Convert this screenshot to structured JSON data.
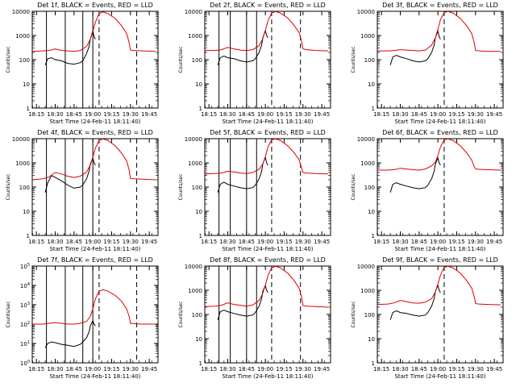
{
  "figure": {
    "xlabel": "Start Time (24-Feb-11 18:11:40)",
    "ylabel": "Counts/sec",
    "x_tick_labels": [
      "18:15",
      "18:30",
      "18:45",
      "19:00",
      "19:15",
      "19:30",
      "19:45"
    ],
    "x_tick_minutes": [
      15,
      30,
      45,
      60,
      75,
      90,
      105
    ],
    "xlim_minutes": [
      11.67,
      112
    ],
    "colors": {
      "events": "#000000",
      "lld": "#dd0000",
      "axes": "#000000"
    }
  },
  "chart_data": [
    {
      "type": "line",
      "title": "Det 1f, BLACK = Events, RED = LLD",
      "ylabel": "Counts/sec",
      "ylim": [
        1,
        10000
      ],
      "yscale": "log",
      "ytick_style": "plain",
      "solid_lines_minutes": [
        23,
        38,
        52,
        60
      ],
      "dashed_lines_minutes": [
        65,
        95
      ],
      "series": [
        {
          "name": "Events",
          "color": "#000000",
          "x": [
            22,
            24,
            27,
            30,
            35,
            40,
            45,
            50,
            52,
            55,
            57,
            58,
            60,
            61,
            62
          ],
          "y": [
            60,
            110,
            120,
            100,
            90,
            70,
            65,
            75,
            90,
            180,
            350,
            700,
            1600,
            900,
            700
          ]
        },
        {
          "name": "LLD",
          "color": "#dd0000",
          "x": [
            11.7,
            20,
            25,
            30,
            35,
            40,
            45,
            50,
            55,
            58,
            60,
            62,
            65,
            68,
            72,
            78,
            83,
            87,
            89,
            90,
            93,
            100,
            110
          ],
          "y": [
            220,
            230,
            240,
            280,
            240,
            230,
            220,
            240,
            350,
            700,
            1500,
            3500,
            8000,
            9500,
            8000,
            5000,
            2500,
            1200,
            500,
            250,
            240,
            230,
            220
          ]
        }
      ]
    },
    {
      "type": "line",
      "title": "Det 2f, BLACK = Events, RED = LLD",
      "ylabel": "Counts/sec",
      "ylim": [
        1,
        10000
      ],
      "yscale": "log",
      "ytick_style": "plain",
      "solid_lines_minutes": [
        23,
        32,
        45,
        53
      ],
      "dashed_lines_minutes": [
        65,
        88
      ],
      "series": [
        {
          "name": "Events",
          "color": "#000000",
          "x": [
            22,
            24,
            27,
            30,
            35,
            40,
            45,
            50,
            52,
            55,
            57,
            58,
            60,
            61,
            62
          ],
          "y": [
            60,
            120,
            140,
            120,
            110,
            90,
            80,
            90,
            110,
            200,
            400,
            800,
            1600,
            1000,
            800
          ]
        },
        {
          "name": "LLD",
          "color": "#dd0000",
          "x": [
            11.7,
            20,
            25,
            30,
            35,
            40,
            45,
            50,
            55,
            58,
            60,
            62,
            65,
            68,
            72,
            78,
            83,
            87,
            89,
            90,
            93,
            100,
            110
          ],
          "y": [
            240,
            240,
            260,
            320,
            280,
            250,
            240,
            260,
            380,
            750,
            1600,
            4000,
            8500,
            9800,
            8500,
            5200,
            2600,
            1300,
            550,
            280,
            260,
            240,
            230
          ]
        }
      ]
    },
    {
      "type": "line",
      "title": "Det 3f, BLACK = Events, RED = LLD",
      "ylabel": "Counts/sec",
      "ylim": [
        1,
        10000
      ],
      "yscale": "log",
      "ytick_style": "plain",
      "solid_lines_minutes": [],
      "dashed_lines_minutes": [
        65
      ],
      "series": [
        {
          "name": "Events",
          "color": "#000000",
          "x": [
            22,
            24,
            27,
            30,
            35,
            40,
            45,
            50,
            52,
            55,
            57,
            58,
            60,
            61,
            62
          ],
          "y": [
            60,
            130,
            150,
            130,
            110,
            90,
            80,
            90,
            110,
            200,
            400,
            800,
            1500,
            900,
            700
          ]
        },
        {
          "name": "LLD",
          "color": "#dd0000",
          "x": [
            11.7,
            20,
            25,
            30,
            35,
            40,
            45,
            50,
            55,
            58,
            60,
            62,
            65,
            68,
            72,
            78,
            83,
            87,
            89,
            90,
            93,
            100,
            110
          ],
          "y": [
            230,
            230,
            240,
            260,
            250,
            240,
            230,
            250,
            400,
            800,
            1800,
            4500,
            9000,
            9800,
            8500,
            5000,
            2500,
            1200,
            500,
            240,
            230,
            220,
            220
          ]
        }
      ]
    },
    {
      "type": "line",
      "title": "Det 4f, BLACK = Events, RED = LLD",
      "ylabel": "Counts/sec",
      "ylim": [
        1,
        10000
      ],
      "yscale": "log",
      "ytick_style": "plain",
      "solid_lines_minutes": [
        23,
        38,
        52,
        60
      ],
      "dashed_lines_minutes": [
        65,
        95
      ],
      "series": [
        {
          "name": "Events",
          "color": "#000000",
          "x": [
            22,
            24,
            27,
            30,
            35,
            40,
            45,
            50,
            52,
            55,
            57,
            58,
            60,
            61,
            62
          ],
          "y": [
            60,
            150,
            300,
            250,
            180,
            120,
            90,
            100,
            120,
            220,
            450,
            900,
            1600,
            1000,
            800
          ]
        },
        {
          "name": "LLD",
          "color": "#dd0000",
          "x": [
            11.7,
            20,
            25,
            30,
            35,
            40,
            45,
            50,
            55,
            58,
            60,
            62,
            65,
            68,
            72,
            78,
            83,
            87,
            89,
            90,
            93,
            100,
            110
          ],
          "y": [
            200,
            220,
            260,
            400,
            350,
            280,
            250,
            280,
            420,
            800,
            1700,
            4000,
            8500,
            9800,
            8500,
            5000,
            2500,
            1200,
            500,
            230,
            220,
            210,
            200
          ]
        }
      ]
    },
    {
      "type": "line",
      "title": "Det 5f, BLACK = Events, RED = LLD",
      "ylabel": "Counts/sec",
      "ylim": [
        1,
        10000
      ],
      "yscale": "log",
      "ytick_style": "plain",
      "solid_lines_minutes": [
        23,
        32,
        45,
        53
      ],
      "dashed_lines_minutes": [
        65,
        88
      ],
      "series": [
        {
          "name": "Events",
          "color": "#000000",
          "x": [
            22,
            24,
            27,
            30,
            35,
            40,
            45,
            50,
            52,
            55,
            57,
            58,
            60,
            61,
            62
          ],
          "y": [
            60,
            130,
            160,
            130,
            110,
            95,
            85,
            95,
            120,
            220,
            450,
            900,
            1700,
            1000,
            800
          ]
        },
        {
          "name": "LLD",
          "color": "#dd0000",
          "x": [
            11.7,
            20,
            25,
            30,
            35,
            40,
            45,
            50,
            55,
            58,
            60,
            62,
            65,
            68,
            72,
            78,
            83,
            87,
            89,
            90,
            93,
            100,
            110
          ],
          "y": [
            350,
            360,
            380,
            450,
            420,
            380,
            360,
            400,
            550,
            900,
            1800,
            4500,
            9000,
            9800,
            8500,
            5000,
            2600,
            1300,
            600,
            400,
            380,
            360,
            350
          ]
        }
      ]
    },
    {
      "type": "line",
      "title": "Det 6f, BLACK = Events, RED = LLD",
      "ylabel": "Counts/sec",
      "ylim": [
        1,
        10000
      ],
      "yscale": "log",
      "ytick_style": "plain",
      "solid_lines_minutes": [],
      "dashed_lines_minutes": [
        65
      ],
      "series": [
        {
          "name": "Events",
          "color": "#000000",
          "x": [
            22,
            24,
            27,
            30,
            35,
            40,
            45,
            50,
            52,
            55,
            57,
            58,
            60,
            61,
            62
          ],
          "y": [
            60,
            130,
            150,
            130,
            110,
            95,
            85,
            95,
            120,
            220,
            450,
            900,
            1600,
            1000,
            800
          ]
        },
        {
          "name": "LLD",
          "color": "#dd0000",
          "x": [
            11.7,
            20,
            25,
            30,
            35,
            40,
            45,
            50,
            55,
            58,
            60,
            62,
            65,
            68,
            72,
            78,
            83,
            87,
            89,
            90,
            93,
            100,
            110
          ],
          "y": [
            500,
            500,
            520,
            600,
            560,
            520,
            500,
            560,
            750,
            1100,
            2000,
            4500,
            9000,
            9800,
            8500,
            5000,
            2600,
            1300,
            700,
            560,
            540,
            520,
            500
          ]
        }
      ]
    },
    {
      "type": "line",
      "title": "Det 7f, BLACK = Events, RED = LLD",
      "ylabel": "Counts/sec",
      "ylim": [
        1,
        100000
      ],
      "yscale": "log",
      "ytick_style": "power",
      "solid_lines_minutes": [
        23,
        38,
        52,
        60
      ],
      "dashed_lines_minutes": [
        65,
        95
      ],
      "series": [
        {
          "name": "Events",
          "color": "#000000",
          "x": [
            22,
            24,
            27,
            30,
            35,
            40,
            45,
            50,
            52,
            55,
            57,
            58,
            60,
            61,
            62
          ],
          "y": [
            6,
            10,
            12,
            11,
            9,
            8,
            7,
            9,
            12,
            20,
            40,
            80,
            150,
            100,
            80
          ]
        },
        {
          "name": "LLD",
          "color": "#dd0000",
          "x": [
            11.7,
            20,
            25,
            30,
            35,
            40,
            45,
            50,
            55,
            58,
            60,
            62,
            65,
            68,
            72,
            78,
            83,
            87,
            89,
            90,
            93,
            100,
            110
          ],
          "y": [
            100,
            100,
            110,
            120,
            110,
            100,
            100,
            110,
            140,
            250,
            600,
            2000,
            5000,
            6000,
            5000,
            3000,
            1500,
            600,
            250,
            110,
            105,
            100,
            100
          ]
        }
      ]
    },
    {
      "type": "line",
      "title": "Det 8f, BLACK = Events, RED = LLD",
      "ylabel": "Counts/sec",
      "ylim": [
        1,
        10000
      ],
      "yscale": "log",
      "ytick_style": "plain",
      "solid_lines_minutes": [
        23,
        32,
        45,
        53
      ],
      "dashed_lines_minutes": [
        65,
        88
      ],
      "series": [
        {
          "name": "Events",
          "color": "#000000",
          "x": [
            22,
            24,
            27,
            30,
            35,
            40,
            45,
            50,
            52,
            55,
            57,
            58,
            60,
            61,
            62
          ],
          "y": [
            60,
            130,
            150,
            130,
            110,
            95,
            85,
            95,
            120,
            220,
            450,
            900,
            1600,
            1000,
            800
          ]
        },
        {
          "name": "LLD",
          "color": "#dd0000",
          "x": [
            11.7,
            20,
            25,
            30,
            35,
            40,
            45,
            50,
            55,
            58,
            60,
            62,
            65,
            68,
            72,
            78,
            83,
            87,
            89,
            90,
            93,
            100,
            110
          ],
          "y": [
            210,
            220,
            240,
            300,
            260,
            240,
            220,
            250,
            380,
            750,
            1600,
            4000,
            8500,
            9800,
            8500,
            5000,
            2500,
            1200,
            500,
            230,
            220,
            210,
            200
          ]
        }
      ]
    },
    {
      "type": "line",
      "title": "Det 9f, BLACK = Events, RED = LLD",
      "ylabel": "Counts/sec",
      "ylim": [
        1,
        10000
      ],
      "yscale": "log",
      "ytick_style": "plain",
      "solid_lines_minutes": [],
      "dashed_lines_minutes": [
        65
      ],
      "series": [
        {
          "name": "Events",
          "color": "#000000",
          "x": [
            22,
            24,
            27,
            30,
            35,
            40,
            45,
            50,
            52,
            55,
            57,
            58,
            60,
            61,
            62
          ],
          "y": [
            60,
            120,
            140,
            120,
            110,
            95,
            85,
            95,
            120,
            220,
            450,
            900,
            1600,
            1000,
            800
          ]
        },
        {
          "name": "LLD",
          "color": "#dd0000",
          "x": [
            11.7,
            20,
            25,
            30,
            35,
            40,
            45,
            50,
            55,
            58,
            60,
            62,
            65,
            68,
            72,
            78,
            83,
            87,
            89,
            90,
            93,
            100,
            110
          ],
          "y": [
            260,
            270,
            300,
            380,
            340,
            300,
            290,
            320,
            450,
            850,
            1800,
            4200,
            8800,
            9800,
            8500,
            5000,
            2500,
            1200,
            550,
            280,
            270,
            260,
            250
          ]
        }
      ]
    }
  ]
}
